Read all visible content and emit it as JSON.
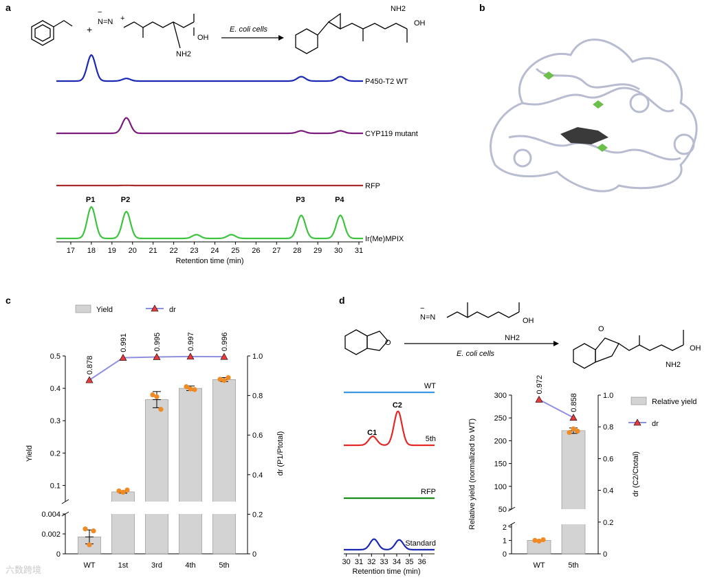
{
  "panels": {
    "a": "a",
    "b": "b",
    "c": "c",
    "d": "d"
  },
  "colors": {
    "bar": "#d3d3d3",
    "dr_line": "#8f8fe0",
    "dr_marker": "#e83a3a",
    "points": "#f08a24"
  },
  "panel_a": {
    "reaction_label": "E. coli cells",
    "nh2": "NH2",
    "oh": "OH",
    "diazo": "N=N",
    "traces": [
      {
        "name": "P450-T2 WT",
        "color": "#1a28b4",
        "peaks": [
          [
            18.0,
            1.0
          ],
          [
            19.7,
            0.1
          ],
          [
            28.2,
            0.17
          ],
          [
            30.1,
            0.17
          ]
        ]
      },
      {
        "name": "CYP119 mutant",
        "color": "#7b1b7b",
        "peaks": [
          [
            19.7,
            0.75
          ],
          [
            28.2,
            0.12
          ],
          [
            30.1,
            0.12
          ]
        ]
      },
      {
        "name": "RFP",
        "color": "#a82a2a",
        "peaks": [
          [
            19.7,
            0.03
          ]
        ]
      },
      {
        "name": "Ir(Me)MPIX",
        "color": "#3ec33e",
        "peaks": [
          [
            18.0,
            1.0
          ],
          [
            19.7,
            0.85
          ],
          [
            23.1,
            0.12
          ],
          [
            24.8,
            0.12
          ],
          [
            28.2,
            0.73
          ],
          [
            30.1,
            0.73
          ]
        ]
      }
    ],
    "peak_labels": [
      {
        "text": "P1",
        "x": 18.0
      },
      {
        "text": "P2",
        "x": 19.7
      },
      {
        "text": "P3",
        "x": 28.2
      },
      {
        "text": "P4",
        "x": 30.1
      }
    ],
    "xticks": [
      "17",
      "18",
      "19",
      "20",
      "21",
      "22",
      "23",
      "24",
      "25",
      "26",
      "27",
      "28",
      "29",
      "30",
      "31"
    ],
    "xlabel": "Retention time (min)"
  },
  "chart_data": [
    {
      "type": "bar",
      "panel": "c",
      "categories": [
        "WT",
        "1st",
        "3rd",
        "4th",
        "5th"
      ],
      "series": [
        {
          "name": "Yield",
          "values": [
            0.0017,
            0.08,
            0.365,
            0.4,
            0.427
          ]
        },
        {
          "name": "dr",
          "values": [
            0.878,
            0.991,
            0.995,
            0.997,
            0.996
          ]
        }
      ],
      "points": [
        [
          0.0025,
          0.0009,
          0.0023
        ],
        [
          0.083,
          0.079,
          0.086
        ],
        [
          0.38,
          0.374,
          0.335
        ],
        [
          0.405,
          0.398,
          0.396
        ],
        [
          0.428,
          0.424,
          0.433
        ]
      ],
      "errors": [
        0.0007,
        0.004,
        0.025,
        0.007,
        0.006
      ],
      "dr_labels": [
        "0.878",
        "0.991",
        "0.995",
        "0.997",
        "0.996"
      ],
      "ylabel": "Yield",
      "ylabel2": "dr (P1/Ptotal)",
      "yticks_upper": [
        "0.1",
        "0.2",
        "0.3",
        "0.4",
        "0.5"
      ],
      "yticks_lower": [
        "0",
        "0.002",
        "0.004"
      ],
      "y2ticks": [
        "0",
        "0.2",
        "0.4",
        "0.6",
        "0.8",
        "1.0"
      ],
      "legend": [
        "Yield",
        "dr"
      ]
    },
    {
      "type": "line",
      "panel": "d-left",
      "traces": [
        {
          "name": "WT",
          "color": "#3b97e0",
          "peaks": []
        },
        {
          "name": "5th",
          "color": "#e32626",
          "peaks": [
            [
              32.1,
              0.25
            ],
            [
              34.1,
              0.95
            ]
          ]
        },
        {
          "name": "RFP",
          "color": "#1a8a1a",
          "peaks": []
        },
        {
          "name": "Standard",
          "color": "#1a28b4",
          "peaks": [
            [
              32.2,
              0.7
            ],
            [
              34.2,
              0.65
            ]
          ]
        }
      ],
      "peak_labels": [
        {
          "text": "C1",
          "x": 32.1
        },
        {
          "text": "C2",
          "x": 34.1
        }
      ],
      "xticks": [
        "30",
        "31",
        "32",
        "33",
        "34",
        "35",
        "36"
      ],
      "xlabel": "Retention time (min)"
    },
    {
      "type": "bar",
      "panel": "d-right",
      "categories": [
        "WT",
        "5th"
      ],
      "series": [
        {
          "name": "Relative yield",
          "values": [
            1,
            222
          ]
        },
        {
          "name": "dr",
          "values": [
            0.972,
            0.858
          ]
        }
      ],
      "points": [
        [
          1.0,
          0.95,
          1.05
        ],
        [
          218,
          226,
          221
        ]
      ],
      "errors": [
        0.05,
        6
      ],
      "dr_labels": [
        "0.972",
        "0.858"
      ],
      "ylabel": "Relative yield (normalized to WT)",
      "ylabel2": "dr (C2/Ctotal)",
      "yticks_upper": [
        "50",
        "100",
        "150",
        "200",
        "250",
        "300"
      ],
      "yticks_lower": [
        "0",
        "1",
        "2"
      ],
      "y2ticks": [
        "0",
        "0.2",
        "0.4",
        "0.6",
        "0.8",
        "1.0"
      ],
      "legend": [
        "Relative yield",
        "dr"
      ]
    }
  ],
  "panel_d": {
    "reaction_label": "E. coli cells",
    "nh2": "NH2",
    "oh": "OH",
    "o": "O"
  },
  "watermark": "六数跨境"
}
